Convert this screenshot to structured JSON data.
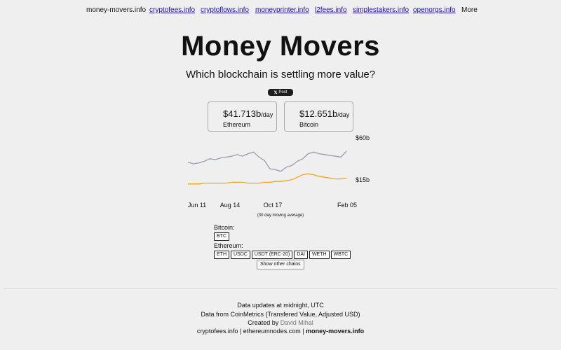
{
  "nav": {
    "home": "money-movers.info",
    "links": [
      "cryptofees.info",
      "cryptoflows.info",
      "moneyprinter.info",
      "l2fees.info",
      "simplestakers.info",
      "openorgs.info"
    ],
    "more": "More"
  },
  "header": {
    "title": "Money Movers",
    "subtitle": "Which blockchain is settling more value?",
    "share_label": "Post"
  },
  "cards": [
    {
      "value": "$41.713b",
      "unit": "/day",
      "label": "Ethereum"
    },
    {
      "value": "$12.651b",
      "unit": "/day",
      "label": "Bitcoin"
    }
  ],
  "chart_data": {
    "type": "line",
    "x_tick_labels": [
      "Jun 11",
      "Aug 14",
      "Oct 17",
      "Feb 05"
    ],
    "y_tick_labels": [
      "$60b",
      "$15b"
    ],
    "ylim": [
      0,
      60
    ],
    "note": "(30 day moving average)",
    "series": [
      {
        "name": "Ethereum",
        "color": "#9a9ab2",
        "values": [
          32,
          30,
          31,
          33,
          36,
          35,
          37,
          38,
          39,
          41,
          39,
          42,
          44,
          38,
          34,
          24,
          23,
          21,
          26,
          28,
          33,
          36,
          42,
          44,
          42,
          41,
          40,
          39,
          38,
          45
        ]
      },
      {
        "name": "Bitcoin",
        "color": "#f2a516",
        "values": [
          6,
          6,
          6,
          7,
          7,
          7,
          7,
          7,
          8,
          8,
          8,
          7,
          7,
          7,
          8,
          8,
          9,
          9,
          10,
          11,
          14,
          17,
          18,
          17,
          15,
          14,
          13,
          12,
          12,
          13
        ]
      }
    ]
  },
  "filters": {
    "bitcoin_label": "Bitcoin:",
    "bitcoin_assets": [
      "BTC"
    ],
    "ethereum_label": "Ethereum:",
    "ethereum_assets": [
      "ETH",
      "USDC",
      "USDT (ERC-20)",
      "DAI",
      "WETH",
      "WBTC"
    ],
    "show_other": "Show other chains"
  },
  "footer": {
    "line1": "Data updates at midnight, UTC",
    "line2": "Data from CoinMetrics (Transfered Value, Adjusted USD)",
    "created_prefix": "Created by",
    "author": "David Mihal",
    "site1": "cryptofees.info",
    "sep": "|",
    "site2": "ethereumnodes.com",
    "site3": "money-movers.info"
  },
  "colors": {
    "link": "#1a0dab",
    "eth_line": "#9a9ab2",
    "btc_line": "#f2a516"
  }
}
